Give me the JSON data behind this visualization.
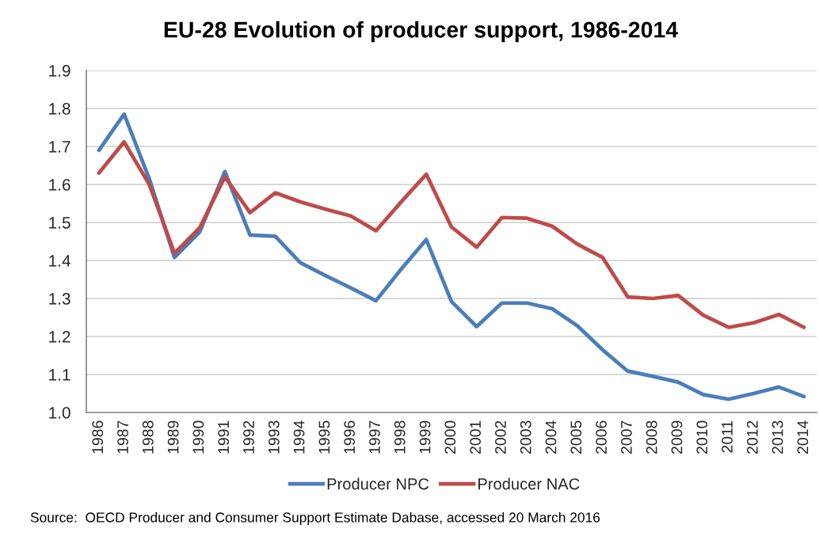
{
  "chart_data": {
    "type": "line",
    "title": "EU-28 Evolution of producer support, 1986-2014",
    "categories": [
      "1986",
      "1987",
      "1988",
      "1989",
      "1990",
      "1991",
      "1992",
      "1993",
      "1994",
      "1995",
      "1996",
      "1997",
      "1998",
      "1999",
      "2000",
      "2001",
      "2002",
      "2003",
      "2004",
      "2005",
      "2006",
      "2007",
      "2008",
      "2009",
      "2010",
      "2011",
      "2012",
      "2013",
      "2014"
    ],
    "series": [
      {
        "name": "Producer NPC",
        "color": "#4a7ebb",
        "values": [
          1.69,
          1.785,
          1.615,
          1.408,
          1.475,
          1.634,
          1.467,
          1.464,
          1.394,
          1.36,
          1.328,
          1.294,
          1.377,
          1.455,
          1.292,
          1.226,
          1.288,
          1.288,
          1.273,
          1.228,
          1.165,
          1.109,
          1.095,
          1.08,
          1.047,
          1.035,
          1.05,
          1.067,
          1.042
        ]
      },
      {
        "name": "Producer NAC",
        "color": "#be4b48",
        "values": [
          1.63,
          1.712,
          1.6,
          1.419,
          1.486,
          1.62,
          1.526,
          1.578,
          1.554,
          1.535,
          1.517,
          1.478,
          1.554,
          1.627,
          1.488,
          1.435,
          1.513,
          1.511,
          1.49,
          1.443,
          1.408,
          1.304,
          1.3,
          1.308,
          1.256,
          1.224,
          1.236,
          1.258,
          1.224
        ]
      }
    ],
    "ylim": [
      1.0,
      1.9
    ],
    "yticks": [
      {
        "value": 1.0,
        "label": "1.0"
      },
      1.1,
      1.2,
      1.3,
      1.4,
      1.5,
      1.6,
      1.7,
      1.8,
      1.9
    ],
    "grid": "y",
    "legend": "bottom",
    "annotations": [
      "Source:  OECD Producer and Consumer Support Estimate Dabase, accessed 20 March 2016"
    ]
  }
}
